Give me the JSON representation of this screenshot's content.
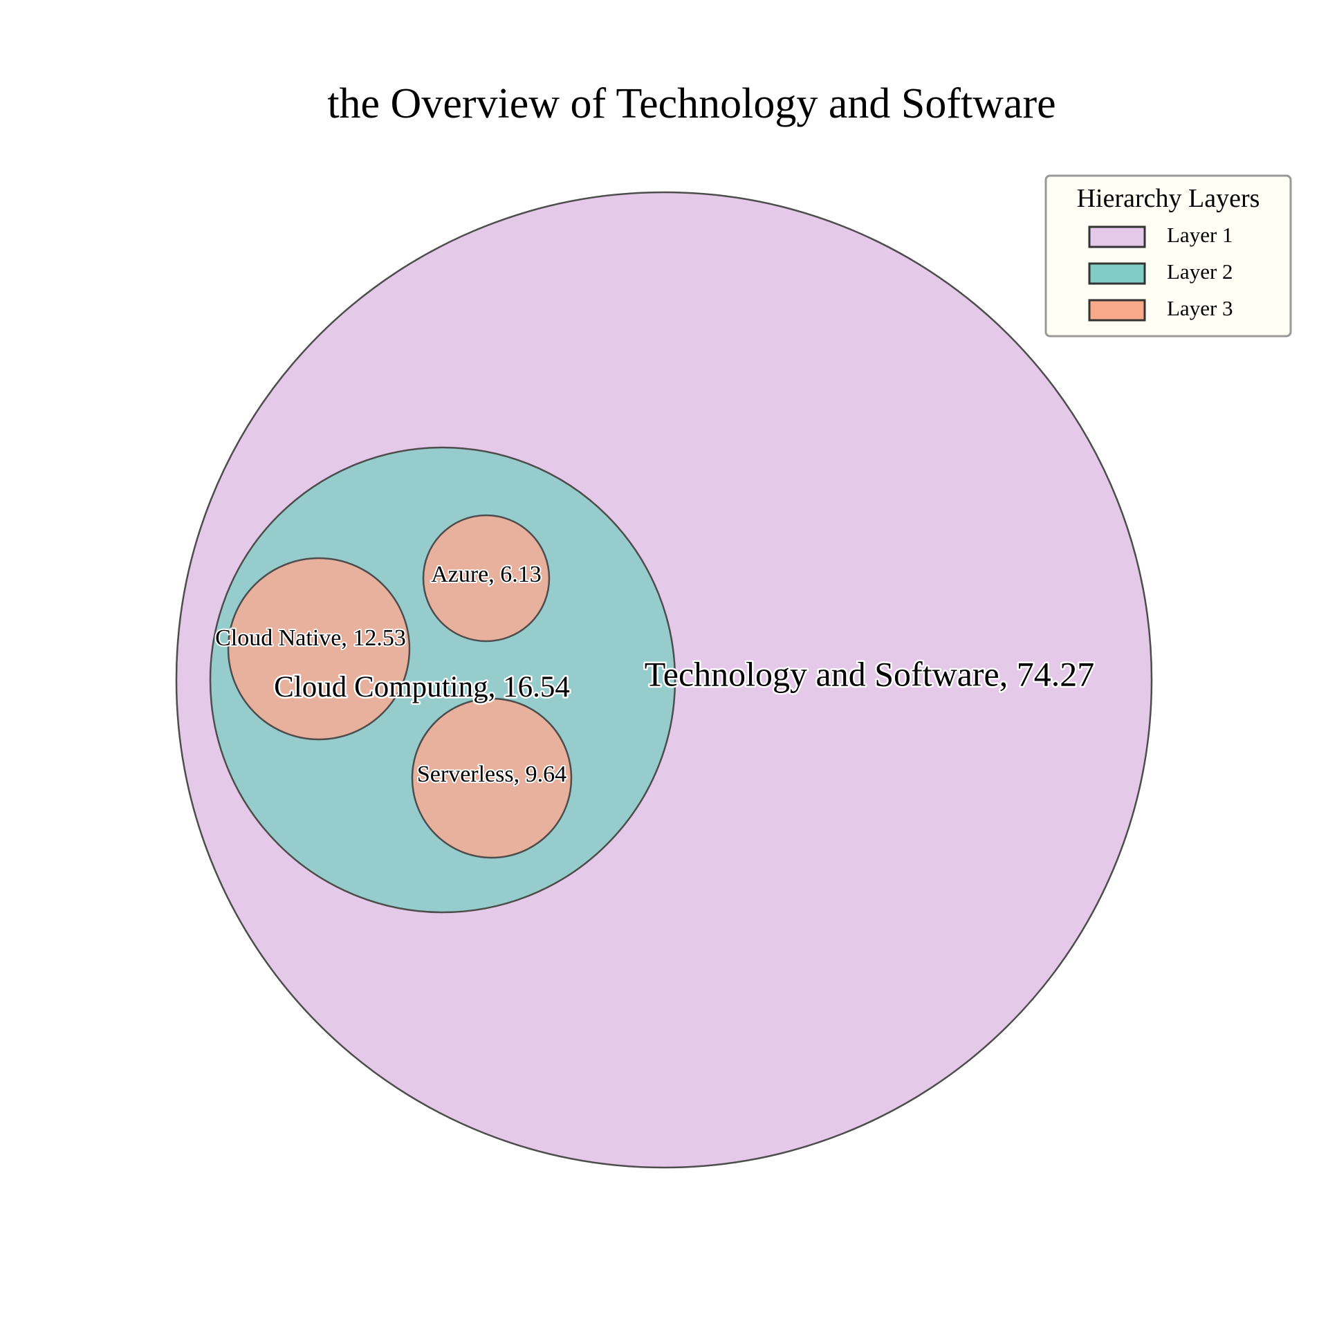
{
  "chart_data": {
    "type": "circle-packing",
    "title": "the Overview of Technology and Software",
    "legend": {
      "title": "Hierarchy Layers",
      "position": "top-right",
      "entries": [
        {
          "label": "Layer 1",
          "color": "#e5c9e8"
        },
        {
          "label": "Layer 2",
          "color": "#7fcdc5"
        },
        {
          "label": "Layer 3",
          "color": "#f7a98a"
        }
      ]
    },
    "edge_color": "#4d4d4d",
    "nodes": [
      {
        "name": "Technology and Software",
        "value": 74.27,
        "layer": 1,
        "color": "#e5c9e8",
        "label": "Technology and Software, 74.27"
      },
      {
        "name": "Cloud Computing",
        "value": 16.54,
        "layer": 2,
        "color": "#97cccc",
        "parent": "Technology and Software",
        "label": "Cloud Computing, 16.54"
      },
      {
        "name": "Cloud Native",
        "value": 12.53,
        "layer": 3,
        "color": "#e8b19d",
        "parent": "Cloud Computing",
        "label": "Cloud Native, 12.53"
      },
      {
        "name": "Azure",
        "value": 6.13,
        "layer": 3,
        "color": "#e8b19d",
        "parent": "Cloud Computing",
        "label": "Azure, 6.13"
      },
      {
        "name": "Serverless",
        "value": 9.64,
        "layer": 3,
        "color": "#e8b19d",
        "parent": "Cloud Computing",
        "label": "Serverless, 9.64"
      }
    ]
  }
}
